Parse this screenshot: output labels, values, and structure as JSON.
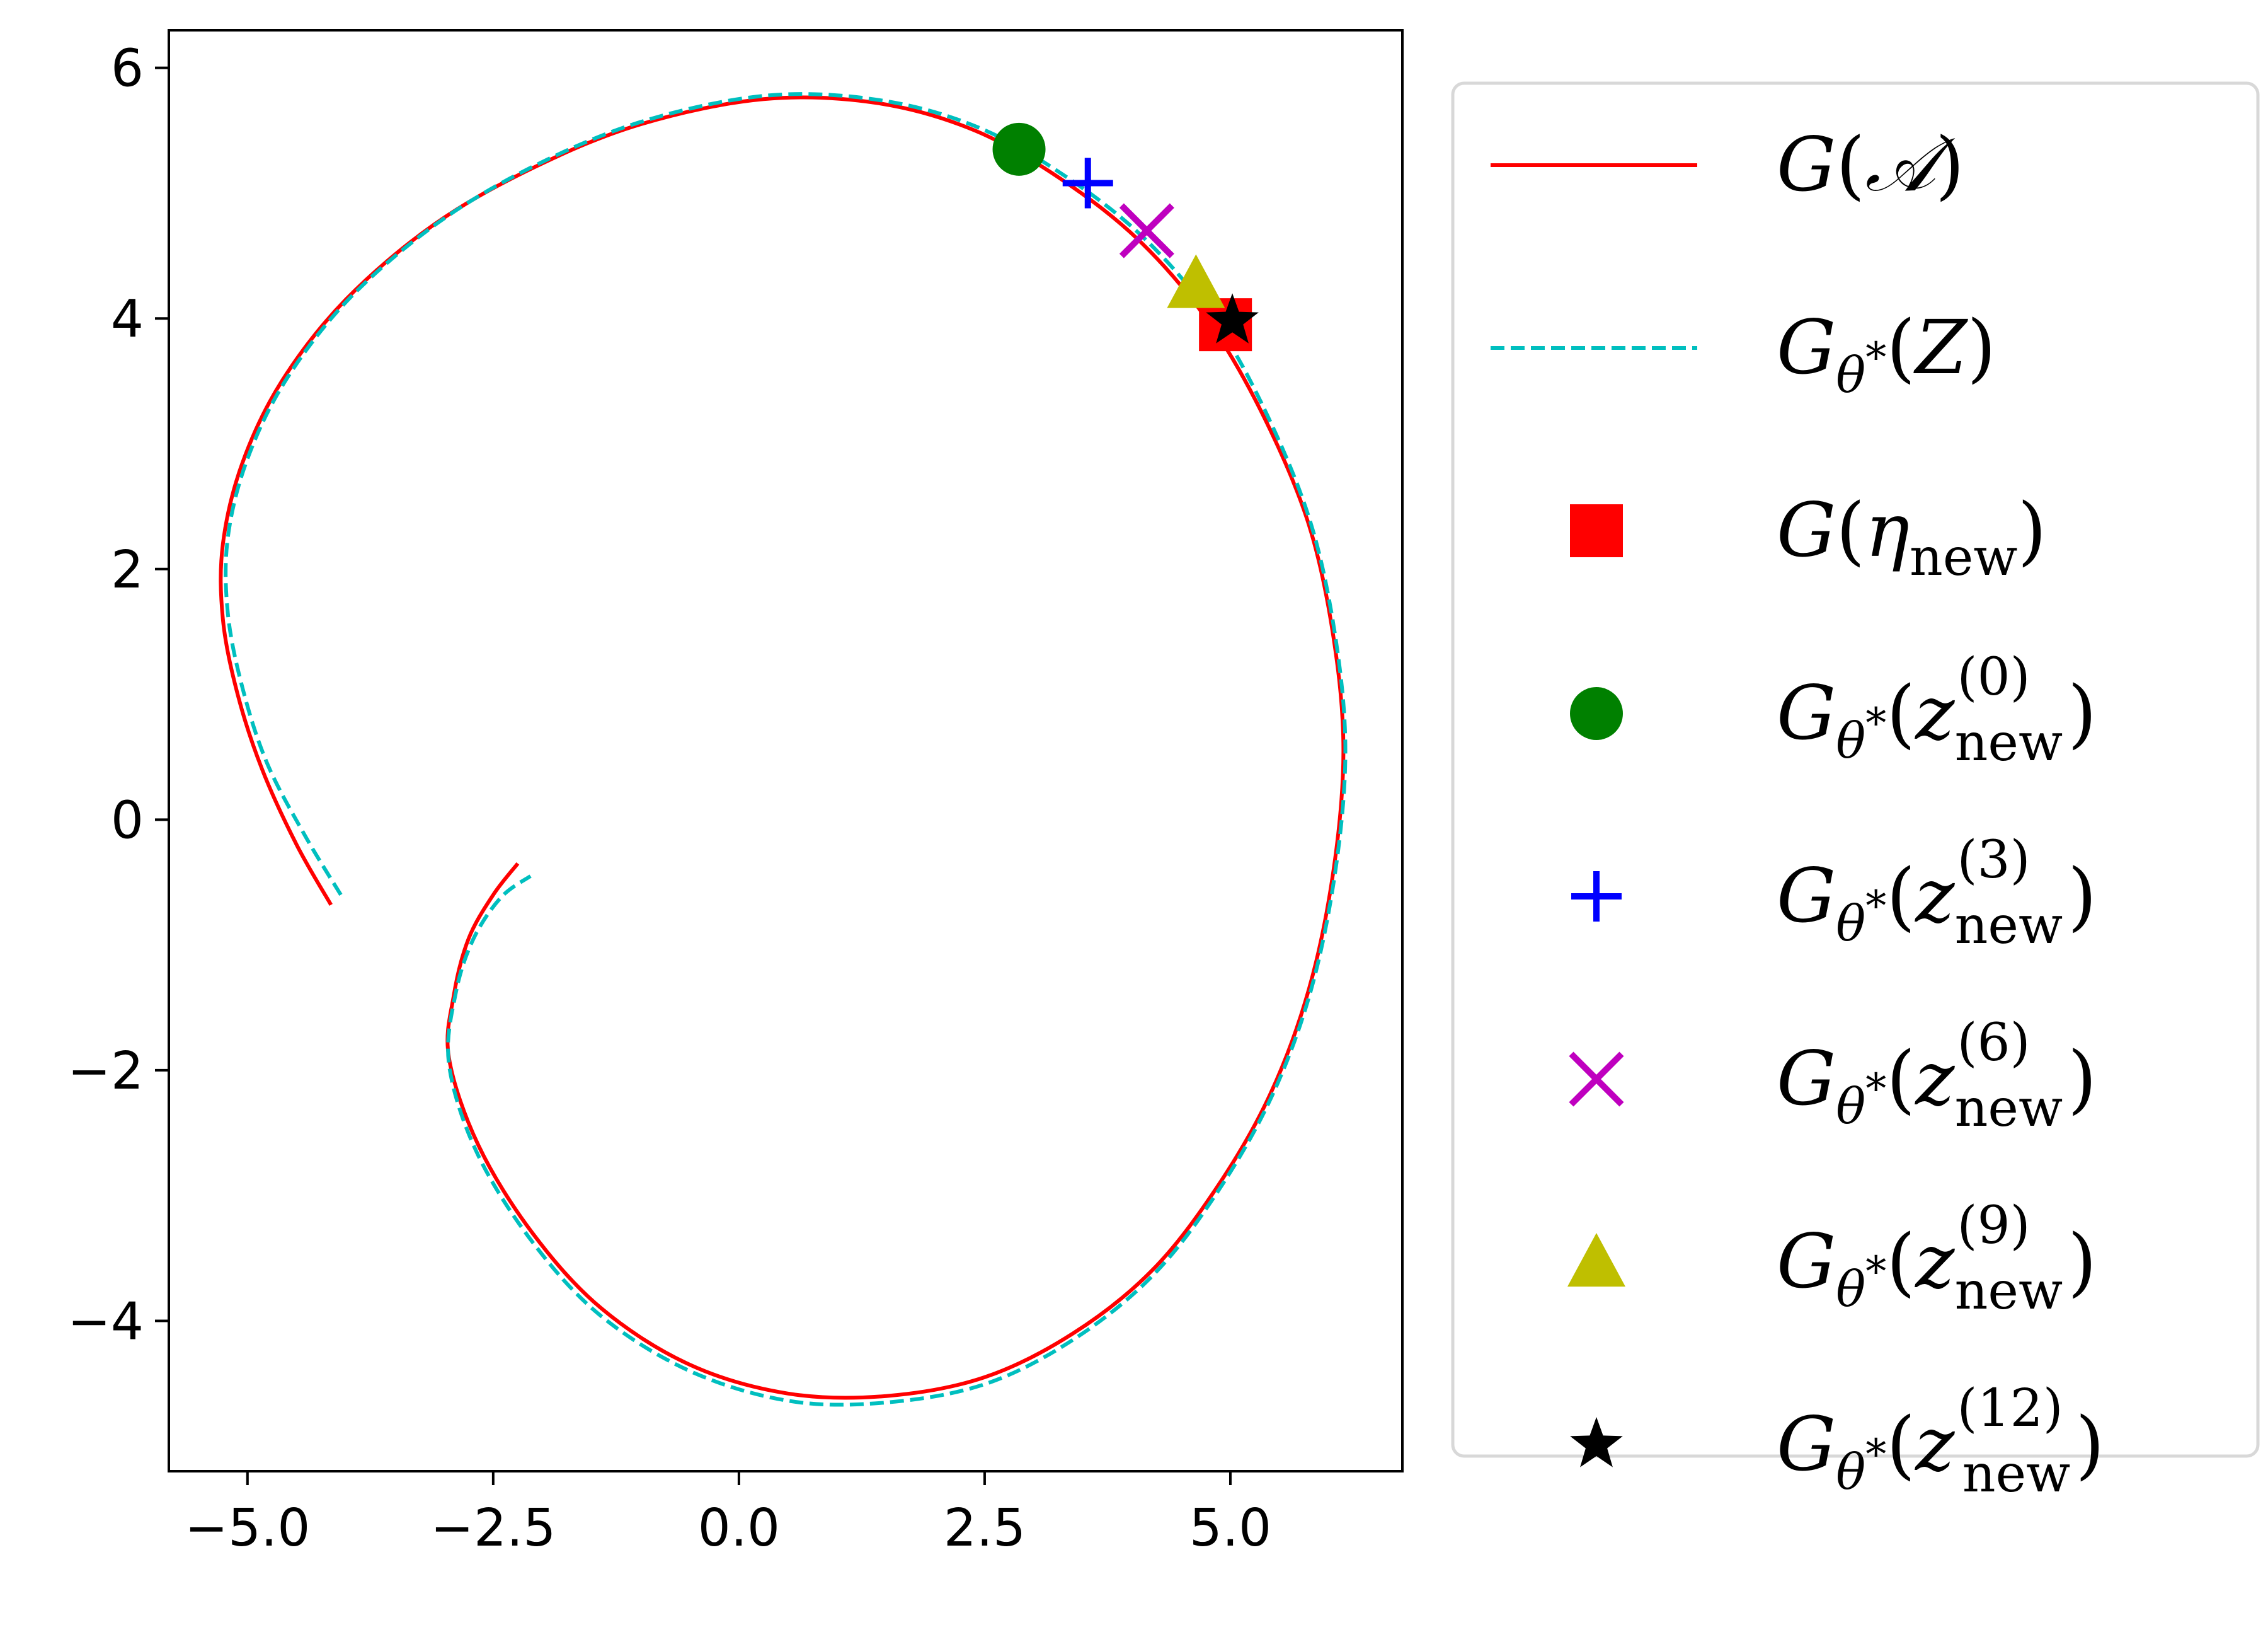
{
  "chart_data": {
    "type": "line",
    "title": "",
    "xlabel": "",
    "ylabel": "",
    "xlim": [
      -5.8,
      6.75
    ],
    "ylim": [
      -5.2,
      6.3
    ],
    "xticks": [
      -5.0,
      -2.5,
      0.0,
      2.5,
      5.0
    ],
    "xtick_labels": [
      "−5.0",
      "−2.5",
      "0.0",
      "2.5",
      "5.0"
    ],
    "yticks": [
      -4,
      -2,
      0,
      2,
      4,
      6
    ],
    "ytick_labels": [
      "−4",
      "−2",
      "0",
      "2",
      "4",
      "6"
    ],
    "grid": false,
    "legend_position": "outside-right",
    "series": [
      {
        "name": "G(𝒜)",
        "kind": "line",
        "style": "solid",
        "color": "#ff0000",
        "x": [
          -4.15,
          -4.5,
          -4.85,
          -5.1,
          -5.25,
          -5.25,
          -5.05,
          -4.65,
          -4.0,
          -3.1,
          -2.1,
          -1.0,
          0.25,
          1.4,
          2.4,
          3.3,
          4.1,
          4.8,
          5.35,
          5.8,
          6.05,
          6.15,
          6.05,
          5.8,
          5.4,
          4.85,
          4.2,
          3.4,
          2.5,
          1.5,
          0.5,
          -0.5,
          -1.4,
          -2.1,
          -2.65,
          -2.95,
          -2.9,
          -2.75,
          -2.5,
          -2.25
        ],
        "y": [
          -0.68,
          -0.2,
          0.4,
          1.0,
          1.6,
          2.2,
          2.85,
          3.5,
          4.15,
          4.75,
          5.2,
          5.55,
          5.75,
          5.72,
          5.5,
          5.1,
          4.6,
          3.95,
          3.2,
          2.35,
          1.45,
          0.55,
          -0.4,
          -1.35,
          -2.2,
          -2.95,
          -3.6,
          -4.1,
          -4.45,
          -4.6,
          -4.58,
          -4.35,
          -3.9,
          -3.3,
          -2.6,
          -1.9,
          -1.4,
          -0.95,
          -0.6,
          -0.35
        ]
      },
      {
        "name": "G_{θ*}(Z)",
        "kind": "line",
        "style": "dashed",
        "color": "#00bfbf",
        "x": [
          -4.05,
          -4.42,
          -4.8,
          -5.05,
          -5.2,
          -5.2,
          -5.0,
          -4.6,
          -3.95,
          -3.05,
          -2.05,
          -0.95,
          0.3,
          1.45,
          2.45,
          3.35,
          4.15,
          4.85,
          5.38,
          5.82,
          6.07,
          6.17,
          6.07,
          5.82,
          5.42,
          4.87,
          4.22,
          3.42,
          2.52,
          1.52,
          0.52,
          -0.5,
          -1.42,
          -2.12,
          -2.67,
          -2.95,
          -2.88,
          -2.7,
          -2.42,
          -2.12
        ],
        "y": [
          -0.6,
          -0.12,
          0.45,
          1.05,
          1.65,
          2.25,
          2.88,
          3.52,
          4.17,
          4.77,
          5.23,
          5.58,
          5.78,
          5.74,
          5.52,
          5.12,
          4.62,
          3.97,
          3.22,
          2.36,
          1.45,
          0.55,
          -0.4,
          -1.36,
          -2.21,
          -2.97,
          -3.63,
          -4.14,
          -4.5,
          -4.65,
          -4.64,
          -4.4,
          -3.95,
          -3.35,
          -2.65,
          -1.95,
          -1.38,
          -0.95,
          -0.62,
          -0.45
        ]
      },
      {
        "name": "G(η_new)",
        "kind": "marker",
        "marker": "square",
        "color": "#ff0000",
        "x": [
          4.95
        ],
        "y": [
          3.95
        ]
      },
      {
        "name": "G_{θ*}(z_new^(0))",
        "kind": "marker",
        "marker": "circle",
        "color": "#008000",
        "x": [
          2.85
        ],
        "y": [
          5.35
        ]
      },
      {
        "name": "G_{θ*}(z_new^(3))",
        "kind": "marker",
        "marker": "plus",
        "color": "#0000ff",
        "x": [
          3.55
        ],
        "y": [
          5.08
        ]
      },
      {
        "name": "G_{θ*}(z_new^(6))",
        "kind": "marker",
        "marker": "x",
        "color": "#bf00bf",
        "x": [
          4.15
        ],
        "y": [
          4.7
        ]
      },
      {
        "name": "G_{θ*}(z_new^(9))",
        "kind": "marker",
        "marker": "triangle",
        "color": "#bfbf00",
        "x": [
          4.65
        ],
        "y": [
          4.28
        ]
      },
      {
        "name": "G_{θ*}(z_new^(12))",
        "kind": "marker",
        "marker": "star",
        "color": "#000000",
        "x": [
          5.02
        ],
        "y": [
          3.98
        ]
      }
    ]
  }
}
